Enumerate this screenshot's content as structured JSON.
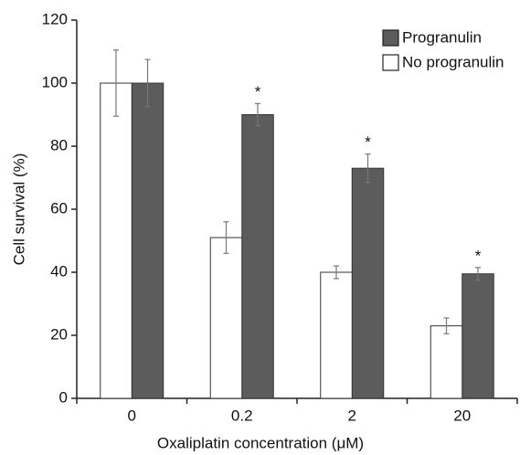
{
  "chart_data": {
    "type": "bar",
    "x_label": "Oxaliplatin concentration (μM)",
    "y_label": "Cell survival (%)",
    "categories": [
      "0",
      "0.2",
      "2",
      "20"
    ],
    "series": [
      {
        "name": "Progranulin",
        "color": "#5c5c5c",
        "values": [
          100,
          90,
          73,
          39.5
        ],
        "errors": [
          7.5,
          3.5,
          4.5,
          2
        ],
        "annotations": [
          null,
          "*",
          "*",
          "*"
        ]
      },
      {
        "name": "No progranulin",
        "color": "#ffffff",
        "values": [
          100,
          51,
          40,
          23
        ],
        "errors": [
          10.5,
          5,
          2,
          2.5
        ]
      }
    ],
    "ylim": [
      0,
      120
    ],
    "yticks": [
      0,
      20,
      40,
      60,
      80,
      100,
      120
    ],
    "legend": "top-right"
  }
}
